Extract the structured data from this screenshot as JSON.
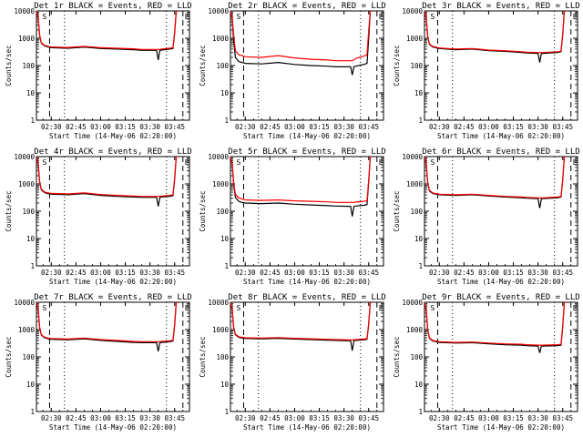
{
  "chart_data": {
    "type": "line",
    "layout": "3x3 grid",
    "y_scale": "log",
    "ylim": [
      1,
      10000
    ],
    "yticks": [
      "1",
      "10",
      "100",
      "1000",
      "10000"
    ],
    "ylabel": "Counts/sec",
    "xlabel": "Start Time (14-May-06 02:20:00)",
    "xlim": [
      "02:21",
      "03:54"
    ],
    "xticks_a": [
      "02:30",
      "02:45",
      "03:00",
      "03:15",
      "03:30",
      "03:45"
    ],
    "xticks_b": [
      "02:30",
      "02:45",
      "03:00",
      "03:15",
      "03:30",
      "03:45"
    ],
    "x_minutes_a": [
      150,
      165,
      180,
      195,
      210,
      225
    ],
    "x_minutes_b": [
      150,
      165,
      180,
      195,
      210,
      225
    ],
    "series_colors": {
      "events": "#000000",
      "lld": "#ff0000"
    },
    "vertical_markers": {
      "dashed_minutes": [
        149,
        230,
        234
      ],
      "dotted_minutes": [
        158,
        220
      ]
    },
    "markers": [
      "S",
      "E"
    ],
    "panels": [
      {
        "title": "Det 1r BLACK = Events, RED = LLD",
        "x_minutes": [
          141,
          142,
          143,
          144,
          146,
          148,
          150,
          160,
          170,
          180,
          190,
          200,
          205,
          214,
          215,
          216,
          217,
          222,
          224,
          225,
          226,
          227
        ],
        "events": [
          10000,
          6000,
          1200,
          650,
          520,
          480,
          450,
          430,
          470,
          420,
          400,
          380,
          360,
          360,
          160,
          360,
          370,
          400,
          420,
          1500,
          10000,
          10000
        ],
        "lld": [
          10000,
          6000,
          1250,
          680,
          550,
          510,
          480,
          460,
          500,
          450,
          430,
          410,
          390,
          390,
          390,
          390,
          400,
          430,
          450,
          1600,
          10000,
          10000
        ]
      },
      {
        "title": "Det 2r BLACK = Events, RED = LLD",
        "x_minutes": [
          141,
          142,
          143,
          144,
          146,
          148,
          150,
          160,
          170,
          180,
          190,
          200,
          205,
          214,
          215,
          216,
          217,
          222,
          224,
          225,
          226,
          227
        ],
        "events": [
          10000,
          6000,
          700,
          200,
          140,
          130,
          120,
          115,
          130,
          110,
          100,
          95,
          90,
          90,
          45,
          90,
          95,
          110,
          120,
          900,
          10000,
          10000
        ],
        "lld": [
          10000,
          6000,
          1300,
          350,
          250,
          230,
          210,
          200,
          230,
          190,
          170,
          160,
          150,
          150,
          150,
          160,
          180,
          220,
          250,
          1800,
          10000,
          10000
        ]
      },
      {
        "title": "Det 3r BLACK = Events, RED = LLD",
        "x_minutes": [
          141,
          142,
          143,
          144,
          146,
          148,
          150,
          160,
          170,
          180,
          190,
          200,
          203,
          210,
          211,
          212,
          213,
          222,
          224,
          225,
          226,
          227
        ],
        "events": [
          10000,
          6000,
          1100,
          600,
          480,
          450,
          420,
          380,
          400,
          350,
          330,
          300,
          290,
          280,
          130,
          280,
          280,
          300,
          320,
          1300,
          10000,
          10000
        ],
        "lld": [
          10000,
          6000,
          1150,
          620,
          500,
          470,
          440,
          400,
          420,
          370,
          350,
          320,
          310,
          300,
          300,
          300,
          300,
          320,
          340,
          1400,
          10000,
          10000
        ]
      },
      {
        "title": "Det 4r BLACK = Events, RED = LLD",
        "x_minutes": [
          141,
          142,
          143,
          144,
          146,
          148,
          150,
          160,
          170,
          180,
          190,
          200,
          205,
          214,
          215,
          216,
          217,
          222,
          224,
          225,
          226,
          227
        ],
        "events": [
          10000,
          6000,
          1100,
          600,
          480,
          440,
          420,
          400,
          440,
          380,
          350,
          330,
          320,
          320,
          150,
          320,
          330,
          350,
          370,
          1400,
          10000,
          10000
        ],
        "lld": [
          10000,
          6000,
          1150,
          640,
          510,
          470,
          450,
          430,
          470,
          410,
          380,
          360,
          350,
          350,
          350,
          350,
          360,
          380,
          400,
          1500,
          10000,
          10000
        ]
      },
      {
        "title": "Det 5r BLACK = Events, RED = LLD",
        "x_minutes": [
          141,
          142,
          143,
          144,
          146,
          148,
          150,
          160,
          170,
          180,
          190,
          200,
          205,
          214,
          215,
          216,
          217,
          222,
          224,
          225,
          226,
          227
        ],
        "events": [
          10000,
          6000,
          900,
          320,
          230,
          210,
          200,
          190,
          200,
          180,
          170,
          160,
          155,
          150,
          65,
          150,
          155,
          165,
          175,
          1100,
          10000,
          10000
        ],
        "lld": [
          10000,
          6000,
          1100,
          420,
          310,
          280,
          260,
          250,
          260,
          240,
          230,
          220,
          210,
          210,
          210,
          210,
          215,
          230,
          240,
          1300,
          10000,
          10000
        ]
      },
      {
        "title": "Det 6r BLACK = Events, RED = LLD",
        "x_minutes": [
          141,
          142,
          143,
          144,
          146,
          148,
          150,
          160,
          170,
          180,
          190,
          200,
          203,
          210,
          211,
          212,
          213,
          222,
          224,
          225,
          226,
          227
        ],
        "events": [
          10000,
          6000,
          1000,
          550,
          450,
          420,
          400,
          380,
          400,
          360,
          330,
          310,
          300,
          290,
          130,
          290,
          290,
          310,
          330,
          1300,
          10000,
          10000
        ],
        "lld": [
          10000,
          6000,
          1050,
          580,
          470,
          440,
          420,
          400,
          420,
          380,
          350,
          330,
          320,
          310,
          310,
          310,
          310,
          330,
          350,
          1400,
          10000,
          10000
        ]
      },
      {
        "title": "Det 7r BLACK = Events, RED = LLD",
        "x_minutes": [
          141,
          142,
          143,
          144,
          146,
          148,
          150,
          160,
          170,
          180,
          190,
          200,
          205,
          214,
          215,
          216,
          217,
          222,
          224,
          225,
          226,
          227
        ],
        "events": [
          10000,
          6000,
          1100,
          620,
          500,
          460,
          440,
          420,
          460,
          400,
          370,
          340,
          330,
          330,
          160,
          330,
          340,
          360,
          380,
          1400,
          10000,
          10000
        ],
        "lld": [
          10000,
          6000,
          1150,
          650,
          530,
          490,
          470,
          450,
          490,
          430,
          400,
          370,
          360,
          360,
          360,
          360,
          370,
          390,
          410,
          1500,
          10000,
          10000
        ]
      },
      {
        "title": "Det 8r BLACK = Events, RED = LLD",
        "x_minutes": [
          141,
          142,
          143,
          144,
          146,
          148,
          150,
          160,
          170,
          180,
          190,
          200,
          205,
          214,
          215,
          216,
          217,
          222,
          224,
          225,
          226,
          227
        ],
        "events": [
          10000,
          6000,
          1100,
          650,
          520,
          490,
          470,
          460,
          480,
          450,
          430,
          410,
          400,
          390,
          170,
          390,
          400,
          420,
          440,
          1500,
          10000,
          10000
        ],
        "lld": [
          10000,
          6000,
          1150,
          680,
          550,
          520,
          500,
          490,
          510,
          480,
          460,
          440,
          430,
          420,
          420,
          420,
          430,
          450,
          470,
          1600,
          10000,
          10000
        ]
      },
      {
        "title": "Det 9r BLACK = Events, RED = LLD",
        "x_minutes": [
          141,
          142,
          143,
          144,
          146,
          148,
          150,
          160,
          170,
          180,
          190,
          200,
          203,
          210,
          211,
          212,
          213,
          222,
          224,
          225,
          226,
          227
        ],
        "events": [
          10000,
          6000,
          900,
          480,
          380,
          360,
          340,
          320,
          330,
          300,
          280,
          270,
          260,
          250,
          140,
          250,
          250,
          260,
          270,
          1200,
          10000,
          10000
        ],
        "lld": [
          10000,
          6000,
          950,
          500,
          400,
          380,
          360,
          340,
          350,
          320,
          300,
          290,
          280,
          270,
          270,
          270,
          270,
          280,
          290,
          1300,
          10000,
          10000
        ]
      }
    ]
  }
}
